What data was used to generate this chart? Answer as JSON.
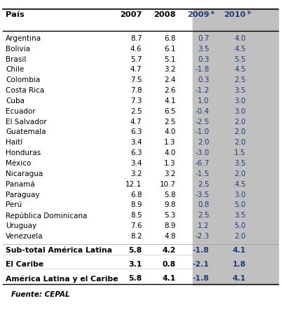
{
  "title_col0": "País",
  "title_col1": "2007",
  "title_col2": "2008",
  "title_col3": "2009",
  "title_col4": "2010",
  "title_superscript3": "a",
  "title_superscript4": "b",
  "rows": [
    [
      "Argentina",
      "8.7",
      "6.8",
      "0.7",
      "4.0"
    ],
    [
      "Bolivia",
      "4.6",
      "6.1",
      "3.5",
      "4.5"
    ],
    [
      "Brasil",
      "5.7",
      "5.1",
      "0.3",
      "5.5"
    ],
    [
      "Chile",
      "4.7",
      "3.2",
      "-1.8",
      "4.5"
    ],
    [
      "Colombia",
      "7.5",
      "2.4",
      "0.3",
      "2.5"
    ],
    [
      "Costa Rica",
      "7.8",
      "2.6",
      "-1.2",
      "3.5"
    ],
    [
      "Cuba",
      "7.3",
      "4.1",
      "1.0",
      "3.0"
    ],
    [
      "Ecuador",
      "2.5",
      "6.5",
      "-0.4",
      "3.0"
    ],
    [
      "El Salvador",
      "4.7",
      "2.5",
      "-2.5",
      "2.0"
    ],
    [
      "Guatemala",
      "6.3",
      "4.0",
      "-1.0",
      "2.0"
    ],
    [
      "Haití",
      "3.4",
      "1.3",
      "2.0",
      "2.0"
    ],
    [
      "Honduras",
      "6.3",
      "4.0",
      "-3.0",
      "1.5"
    ],
    [
      "México",
      "3.4",
      "1.3",
      "-6.7",
      "3.5"
    ],
    [
      "Nicaragua",
      "3.2",
      "3.2",
      "-1.5",
      "2.0"
    ],
    [
      "Panamá",
      "12.1",
      "10.7",
      "2.5",
      "4.5"
    ],
    [
      "Paraguay",
      "6.8",
      "5.8",
      "-3.5",
      "3.0"
    ],
    [
      "Perú",
      "8.9",
      "9.8",
      "0.8",
      "5.0"
    ],
    [
      "República Dominicana",
      "8.5",
      "5.3",
      "2.5",
      "3.5"
    ],
    [
      "Uruguay",
      "7.6",
      "8.9",
      "1.2",
      "5.0"
    ],
    [
      "Venezuela",
      "8.2",
      "4.8",
      "-2.3",
      "2.0"
    ]
  ],
  "subtotals": [
    [
      "Sub-total América Latina",
      "5.8",
      "4.2",
      "-1.8",
      "4.1"
    ],
    [
      "El Caribe",
      "3.1",
      "0.8",
      "-2.1",
      "1.8"
    ],
    [
      "América Latina y el Caribe",
      "5.8",
      "4.1",
      "-1.8",
      "4.1"
    ]
  ],
  "footer": "Fuente: CEPAL",
  "shaded_bg": "#c0c0c0",
  "shaded_text_color": "#1f3d7a",
  "normal_text_color": "#000000",
  "header_text_color": "#1f3d7a",
  "bg_color": "#ffffff",
  "border_color": "#000000",
  "fig_width": 4.01,
  "fig_height": 4.79,
  "dpi": 100
}
